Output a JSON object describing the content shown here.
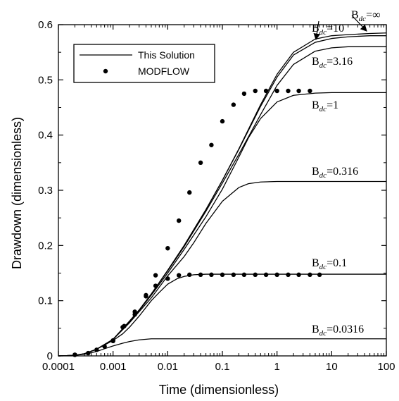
{
  "chart_data": {
    "type": "line",
    "xlabel": "Time (dimensionless)",
    "ylabel": "Drawdown (dimensionless)",
    "xscale": "log",
    "xlim": [
      0.0001,
      100
    ],
    "ylim": [
      0,
      0.6
    ],
    "xticks": [
      "0.0001",
      "0.001",
      "0.01",
      "0.1",
      "1",
      "10",
      "100"
    ],
    "yticks": [
      "0",
      "0.1",
      "0.2",
      "0.3",
      "0.4",
      "0.5",
      "0.6"
    ],
    "grid": false,
    "legend": {
      "placement": "top-left",
      "entries": [
        {
          "label": "This Solution",
          "marker": "line"
        },
        {
          "label": "MODFLOW",
          "marker": "dot"
        }
      ]
    },
    "series": [
      {
        "label": "B_dc=∞",
        "parameter": "∞",
        "kind": "line",
        "x": [
          0.0001,
          0.0002,
          0.0003,
          0.0005,
          0.001,
          0.002,
          0.003,
          0.005,
          0.01,
          0.02,
          0.05,
          0.1,
          0.2,
          0.5,
          1,
          2,
          5,
          10,
          20,
          50,
          100
        ],
        "y": [
          0,
          0.001,
          0.004,
          0.012,
          0.03,
          0.063,
          0.083,
          0.112,
          0.155,
          0.2,
          0.265,
          0.318,
          0.375,
          0.455,
          0.51,
          0.55,
          0.574,
          0.58,
          0.582,
          0.584,
          0.585
        ]
      },
      {
        "label": "B_dc=10",
        "parameter": "10",
        "kind": "line",
        "x": [
          0.0001,
          0.0002,
          0.0003,
          0.0005,
          0.001,
          0.002,
          0.003,
          0.005,
          0.01,
          0.02,
          0.05,
          0.1,
          0.2,
          0.5,
          1,
          2,
          5,
          10,
          20,
          50,
          100
        ],
        "y": [
          0,
          0.001,
          0.004,
          0.012,
          0.03,
          0.063,
          0.083,
          0.112,
          0.155,
          0.2,
          0.265,
          0.318,
          0.374,
          0.452,
          0.505,
          0.545,
          0.568,
          0.575,
          0.578,
          0.58,
          0.58
        ]
      },
      {
        "label": "B_dc=3.16",
        "parameter": "3.16",
        "kind": "line",
        "x": [
          0.0001,
          0.0002,
          0.0003,
          0.0005,
          0.001,
          0.002,
          0.003,
          0.005,
          0.01,
          0.02,
          0.05,
          0.1,
          0.2,
          0.5,
          1,
          2,
          5,
          10,
          20,
          50,
          100
        ],
        "y": [
          0,
          0.001,
          0.004,
          0.012,
          0.03,
          0.063,
          0.083,
          0.112,
          0.154,
          0.198,
          0.262,
          0.313,
          0.365,
          0.437,
          0.49,
          0.528,
          0.552,
          0.558,
          0.56,
          0.56,
          0.56
        ]
      },
      {
        "label": "B_dc=1",
        "parameter": "1",
        "kind": "line",
        "x": [
          0.0001,
          0.0002,
          0.0003,
          0.0005,
          0.001,
          0.002,
          0.003,
          0.005,
          0.01,
          0.02,
          0.05,
          0.1,
          0.2,
          0.3,
          0.5,
          1,
          2,
          5,
          10,
          100
        ],
        "y": [
          0,
          0.001,
          0.004,
          0.012,
          0.03,
          0.062,
          0.082,
          0.11,
          0.15,
          0.193,
          0.252,
          0.302,
          0.36,
          0.395,
          0.43,
          0.46,
          0.472,
          0.476,
          0.477,
          0.477
        ]
      },
      {
        "label": "B_dc=0.316",
        "parameter": "0.316",
        "kind": "line",
        "x": [
          0.0001,
          0.0002,
          0.0003,
          0.0005,
          0.001,
          0.002,
          0.003,
          0.005,
          0.01,
          0.02,
          0.03,
          0.05,
          0.1,
          0.2,
          0.3,
          0.5,
          1,
          100
        ],
        "y": [
          0,
          0.001,
          0.004,
          0.012,
          0.03,
          0.06,
          0.08,
          0.105,
          0.145,
          0.18,
          0.205,
          0.24,
          0.28,
          0.305,
          0.312,
          0.315,
          0.316,
          0.316
        ]
      },
      {
        "label": "B_dc=0.1",
        "parameter": "0.1",
        "kind": "line",
        "x": [
          0.0001,
          0.0002,
          0.0003,
          0.0005,
          0.001,
          0.0015,
          0.002,
          0.003,
          0.005,
          0.007,
          0.01,
          0.015,
          0.02,
          0.03,
          0.05,
          0.1,
          0.2,
          1,
          100
        ],
        "y": [
          0,
          0.001,
          0.004,
          0.012,
          0.028,
          0.04,
          0.052,
          0.072,
          0.1,
          0.115,
          0.13,
          0.14,
          0.144,
          0.147,
          0.148,
          0.148,
          0.148,
          0.148,
          0.148
        ]
      },
      {
        "label": "B_dc=0.0316",
        "parameter": "0.0316",
        "kind": "line",
        "x": [
          0.0001,
          0.0002,
          0.0003,
          0.0005,
          0.0007,
          0.001,
          0.0015,
          0.002,
          0.003,
          0.005,
          0.007,
          0.01,
          100
        ],
        "y": [
          0,
          0.001,
          0.003,
          0.008,
          0.013,
          0.018,
          0.023,
          0.026,
          0.029,
          0.031,
          0.031,
          0.031,
          0.031
        ]
      },
      {
        "label": "MODFLOW (B_dc=1)",
        "kind": "dots",
        "x": [
          0.0002,
          0.0005,
          0.001,
          0.0016,
          0.0025,
          0.004,
          0.006,
          0.01,
          0.016,
          0.025,
          0.04,
          0.063,
          0.1,
          0.16,
          0.25,
          0.4,
          0.63,
          1,
          1.6,
          2.5,
          4
        ],
        "y": [
          0.002,
          0.011,
          0.027,
          0.054,
          0.075,
          0.11,
          0.146,
          0.195,
          0.245,
          0.296,
          0.35,
          0.382,
          0.425,
          0.455,
          0.475,
          0.48,
          0.48,
          0.48,
          0.48,
          0.48,
          0.48
        ]
      },
      {
        "label": "MODFLOW (B_dc=0.1)",
        "kind": "dots",
        "x": [
          0.0002,
          0.00035,
          0.0007,
          0.001,
          0.0015,
          0.0025,
          0.004,
          0.006,
          0.01,
          0.016,
          0.025,
          0.04,
          0.063,
          0.1,
          0.16,
          0.25,
          0.4,
          0.63,
          1,
          1.6,
          2.5,
          4,
          6
        ],
        "y": [
          0.002,
          0.005,
          0.017,
          0.028,
          0.052,
          0.08,
          0.108,
          0.127,
          0.14,
          0.146,
          0.147,
          0.147,
          0.147,
          0.147,
          0.147,
          0.147,
          0.147,
          0.147,
          0.147,
          0.147,
          0.147,
          0.147,
          0.147
        ]
      }
    ],
    "annotations": [
      {
        "base": "B",
        "sub": "dc",
        "value": "=10"
      },
      {
        "base": "B",
        "sub": "dc",
        "value": "=∞"
      },
      {
        "base": "B",
        "sub": "dc",
        "value": "=3.16"
      },
      {
        "base": "B",
        "sub": "dc",
        "value": "=1"
      },
      {
        "base": "B",
        "sub": "dc",
        "value": "=0.316"
      },
      {
        "base": "B",
        "sub": "dc",
        "value": "=0.1"
      },
      {
        "base": "B",
        "sub": "dc",
        "value": "=0.0316"
      }
    ]
  }
}
